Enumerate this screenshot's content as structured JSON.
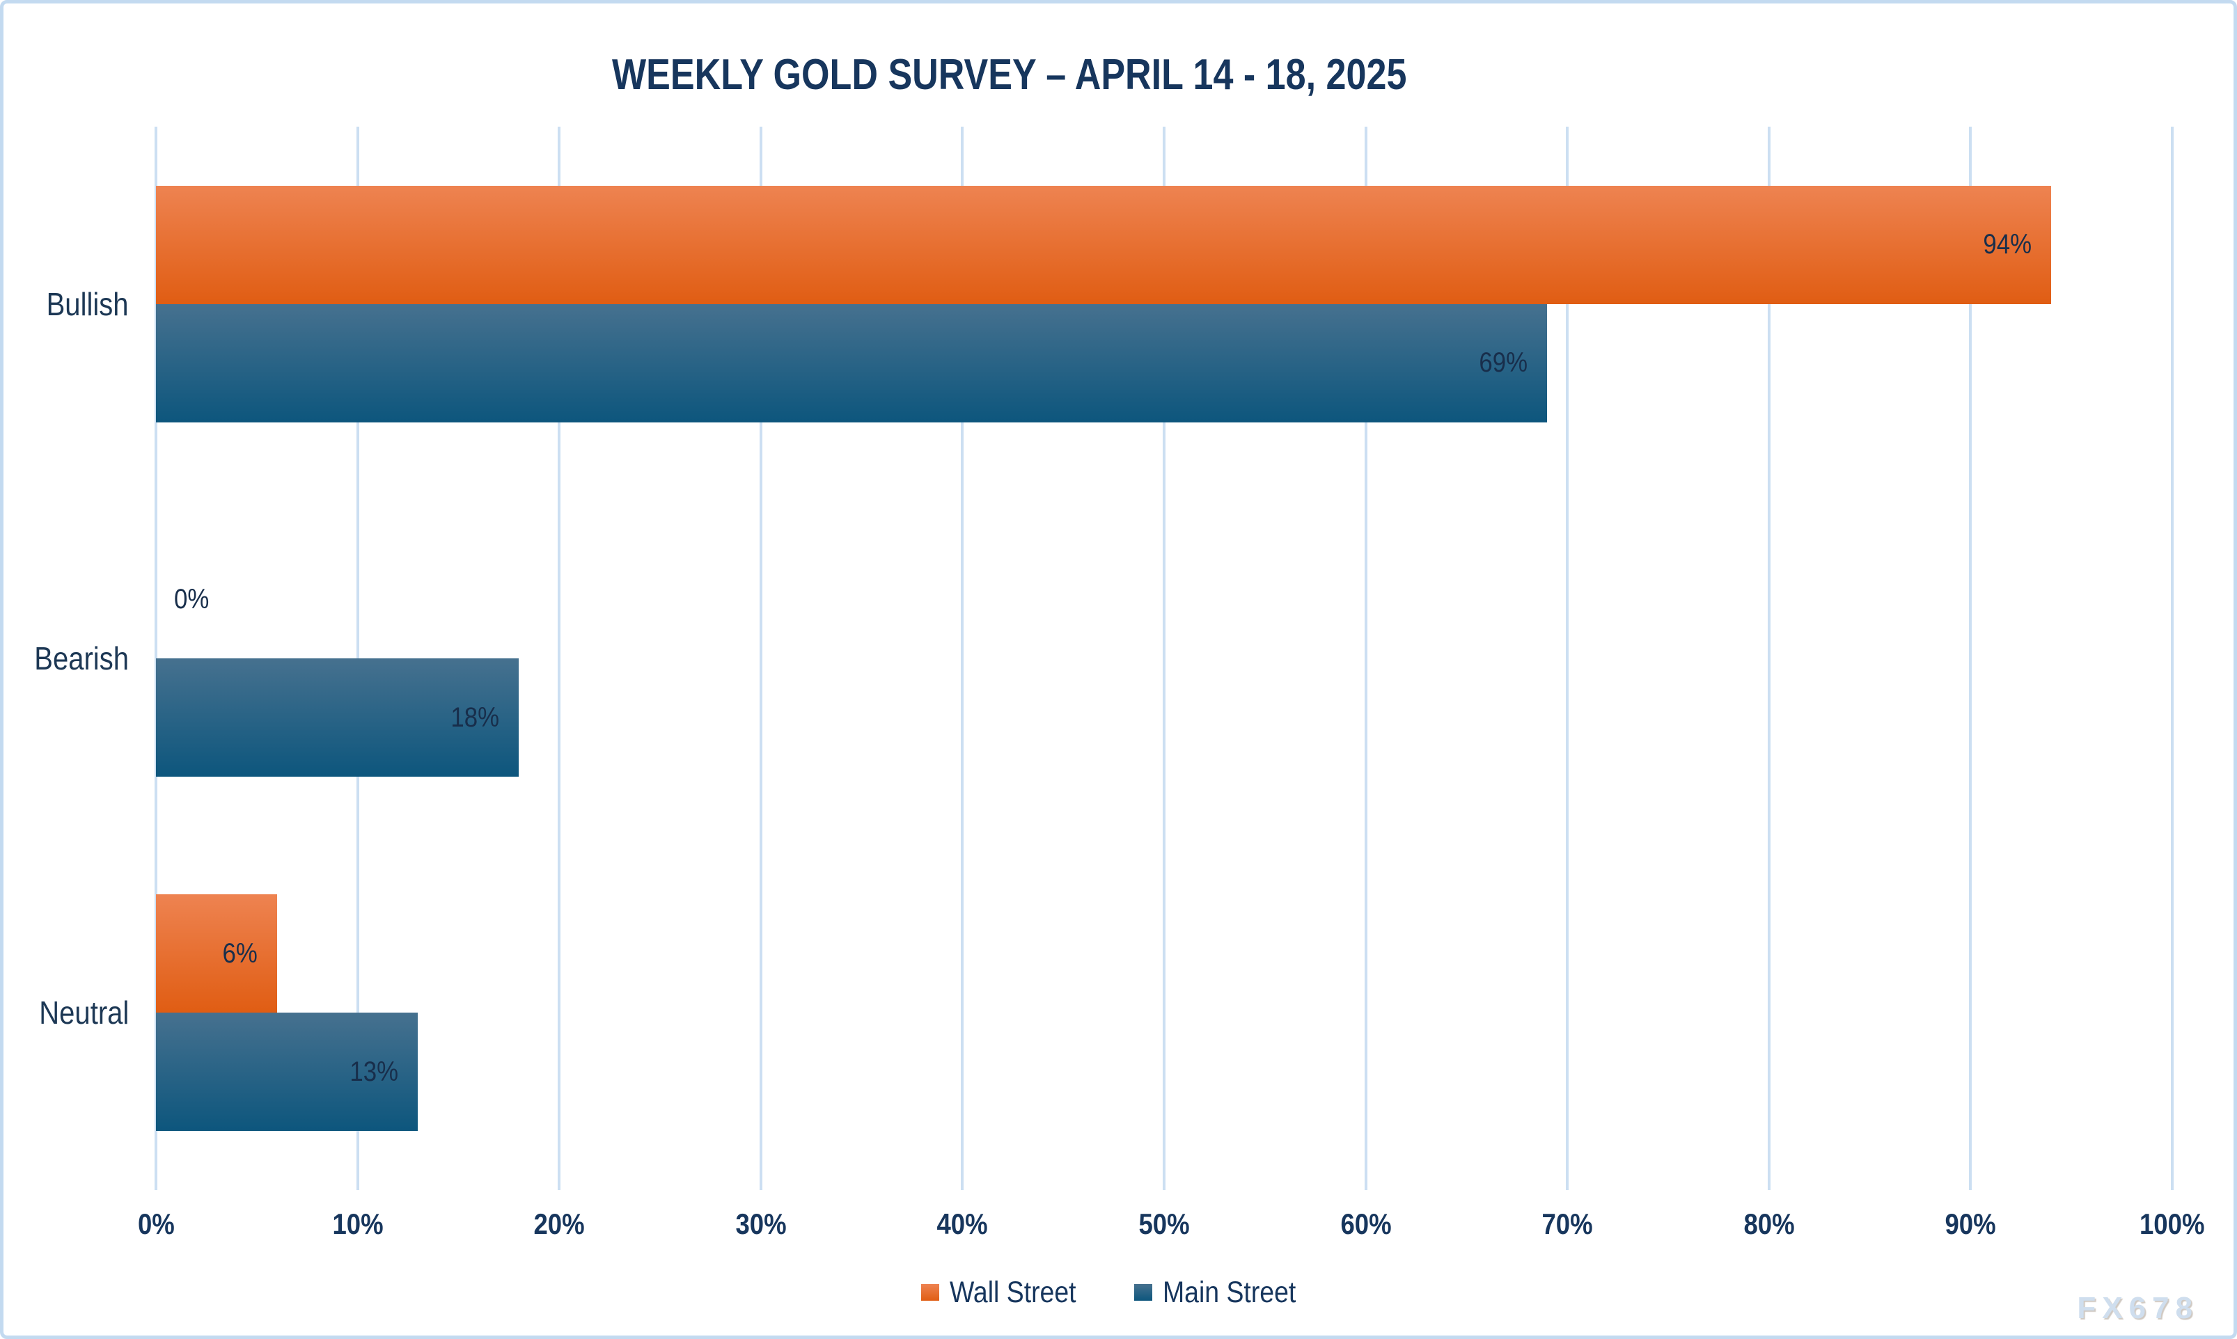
{
  "watermark": "FX678",
  "colors": {
    "text": "#17365d",
    "value_label": "#182e4b",
    "gridline": "#ccdff2",
    "frame_border": "#c3daf0",
    "background": "#ffffff",
    "wall_street_top": "#ee8351",
    "wall_street_bottom": "#e05d13",
    "main_street_top": "#46718f",
    "main_street_bottom": "#0d567d",
    "watermark": "#cfdeee"
  },
  "chart_data": {
    "type": "bar",
    "orientation": "horizontal",
    "title": "WEEKLY GOLD SURVEY – APRIL 14 - 18, 2025",
    "categories": [
      "Bullish",
      "Bearish",
      "Neutral"
    ],
    "series": [
      {
        "name": "Wall Street",
        "values": [
          94,
          0,
          6
        ],
        "color_top": "#ee8351",
        "color_bottom": "#e05d13"
      },
      {
        "name": "Main Street",
        "values": [
          69,
          18,
          13
        ],
        "color_top": "#46718f",
        "color_bottom": "#0d567d"
      }
    ],
    "value_suffix": "%",
    "xlim": [
      0,
      100
    ],
    "x_ticks": [
      "0%",
      "10%",
      "20%",
      "30%",
      "40%",
      "50%",
      "60%",
      "70%",
      "80%",
      "90%",
      "100%"
    ],
    "xlabel": "",
    "ylabel": "",
    "grid": true,
    "legend_position": "bottom"
  }
}
